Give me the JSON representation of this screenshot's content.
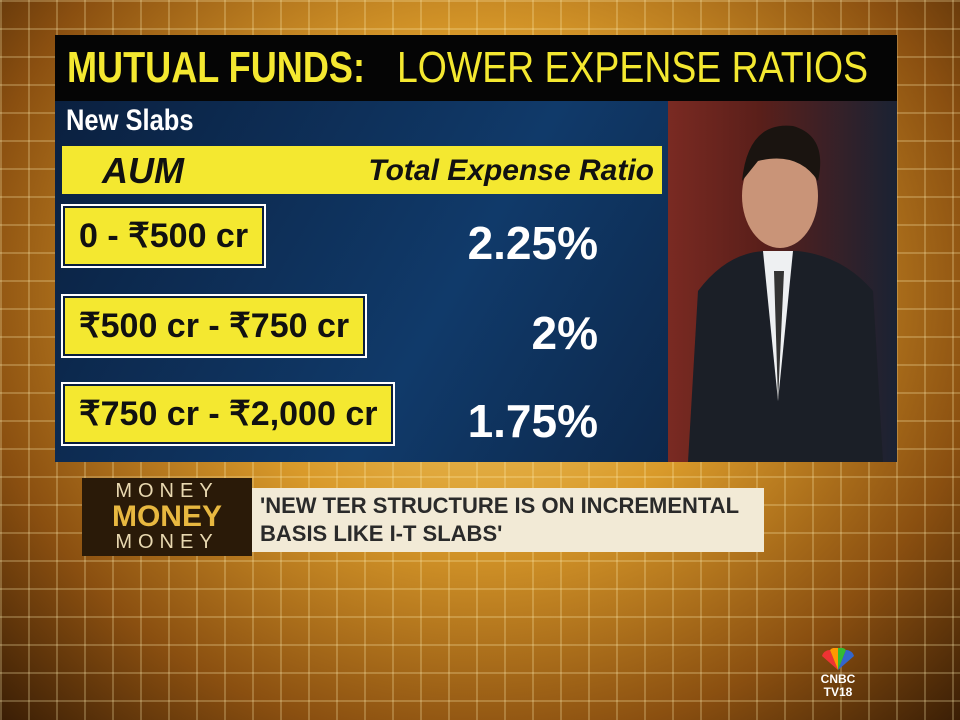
{
  "header": {
    "title_bold": "MUTUAL FUNDS:",
    "title_light": "LOWER EXPENSE RATIOS"
  },
  "subtitle": "New Slabs",
  "table": {
    "columns": [
      "AUM",
      "Total Expense Ratio"
    ],
    "rows": [
      [
        "0 - ₹500 cr",
        "2.25%"
      ],
      [
        "₹500 cr - ₹750 cr",
        "2%"
      ],
      [
        "₹750 cr - ₹2,000 cr",
        "1.75%"
      ]
    ]
  },
  "show": {
    "lines": [
      "MONEY",
      "MONEY",
      "MONEY"
    ]
  },
  "ticker": {
    "lines": [
      "'NEW TER STRUCTURE IS ON INCREMENTAL",
      "BASIS LIKE I-T SLABS'"
    ]
  },
  "logo": {
    "lines": [
      "CNBC",
      "TV18"
    ]
  }
}
